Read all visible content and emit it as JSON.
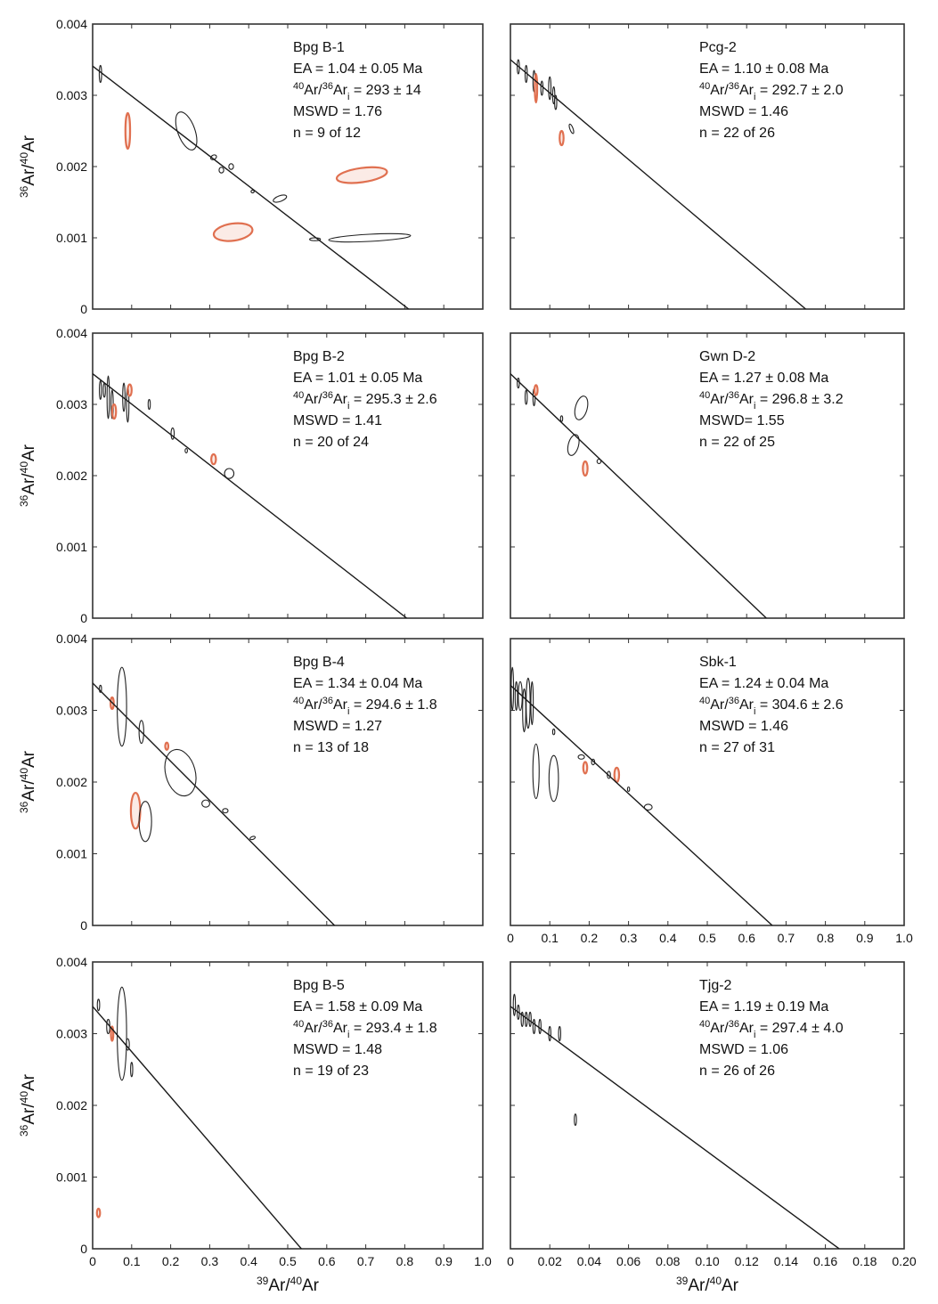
{
  "chart_data": [
    {
      "type": "scatter",
      "id": "bpg-b-1",
      "sample": "Bpg B-1",
      "ea": "EA = 1.04 ± 0.05 Ma",
      "ar_ratio": "293 ± 14",
      "mswd": "MSWD  = 1.76",
      "n": "n = 9 of 12",
      "xlim": [
        0,
        1.0
      ],
      "ylim": [
        0,
        0.004
      ],
      "yticks": [
        "0",
        "0.001",
        "0.002",
        "0.003",
        "0.004"
      ],
      "xticks": [],
      "ylabel": true,
      "xlabel": false,
      "line": [
        [
          0,
          0.00341
        ],
        [
          0.81,
          0
        ]
      ],
      "ellipses": [
        {
          "x": 0.02,
          "y": 0.0033,
          "rx": 0.003,
          "ry": 0.00012,
          "rot": 0,
          "c": "k"
        },
        {
          "x": 0.09,
          "y": 0.0025,
          "rx": 0.006,
          "ry": 0.00025,
          "rot": 0,
          "c": "r"
        },
        {
          "x": 0.24,
          "y": 0.0025,
          "rx": 0.022,
          "ry": 0.00028,
          "rot": -20,
          "c": "k"
        },
        {
          "x": 0.31,
          "y": 0.00213,
          "rx": 0.008,
          "ry": 3e-05,
          "rot": -30,
          "c": "k"
        },
        {
          "x": 0.33,
          "y": 0.00195,
          "rx": 0.006,
          "ry": 4e-05,
          "rot": 0,
          "c": "k"
        },
        {
          "x": 0.355,
          "y": 0.002,
          "rx": 0.006,
          "ry": 4e-05,
          "rot": 0,
          "c": "k"
        },
        {
          "x": 0.41,
          "y": 0.00165,
          "rx": 0.004,
          "ry": 2e-05,
          "rot": 0,
          "c": "k"
        },
        {
          "x": 0.48,
          "y": 0.00155,
          "rx": 0.018,
          "ry": 4e-05,
          "rot": -20,
          "c": "k"
        },
        {
          "x": 0.57,
          "y": 0.00098,
          "rx": 0.014,
          "ry": 2e-05,
          "rot": 0,
          "c": "k"
        },
        {
          "x": 0.36,
          "y": 0.00108,
          "rx": 0.05,
          "ry": 0.00012,
          "rot": -8,
          "c": "r"
        },
        {
          "x": 0.69,
          "y": 0.00188,
          "rx": 0.065,
          "ry": 0.0001,
          "rot": -8,
          "c": "r"
        },
        {
          "x": 0.71,
          "y": 0.001,
          "rx": 0.105,
          "ry": 5e-05,
          "rot": -3,
          "c": "k"
        }
      ]
    },
    {
      "type": "scatter",
      "id": "pcg-2",
      "sample": "Pcg-2",
      "ea": "EA = 1.10 ± 0.08 Ma",
      "ar_ratio": "292.7 ± 2.0",
      "mswd": "MSWD  = 1.46",
      "n": "n = 22 of 26",
      "xlim": [
        0,
        1.0
      ],
      "ylim": [
        0,
        0.004
      ],
      "yticks": [],
      "xticks": [],
      "ylabel": false,
      "xlabel": false,
      "line": [
        [
          0,
          0.0035
        ],
        [
          0.75,
          0
        ]
      ],
      "ellipses": [
        {
          "x": 0.02,
          "y": 0.0034,
          "rx": 0.002,
          "ry": 0.0001,
          "rot": 0,
          "c": "k"
        },
        {
          "x": 0.04,
          "y": 0.0033,
          "rx": 0.002,
          "ry": 0.00012,
          "rot": 0,
          "c": "k"
        },
        {
          "x": 0.06,
          "y": 0.0032,
          "rx": 0.002,
          "ry": 0.00015,
          "rot": 0,
          "c": "k"
        },
        {
          "x": 0.065,
          "y": 0.0031,
          "rx": 0.003,
          "ry": 0.0002,
          "rot": 0,
          "c": "r"
        },
        {
          "x": 0.08,
          "y": 0.0031,
          "rx": 0.002,
          "ry": 0.0001,
          "rot": 0,
          "c": "k"
        },
        {
          "x": 0.1,
          "y": 0.0031,
          "rx": 0.003,
          "ry": 0.00016,
          "rot": 0,
          "c": "k"
        },
        {
          "x": 0.11,
          "y": 0.003,
          "rx": 0.002,
          "ry": 0.00012,
          "rot": 0,
          "c": "k"
        },
        {
          "x": 0.115,
          "y": 0.0029,
          "rx": 0.002,
          "ry": 0.0001,
          "rot": 0,
          "c": "k"
        },
        {
          "x": 0.13,
          "y": 0.0024,
          "rx": 0.005,
          "ry": 0.0001,
          "rot": 0,
          "c": "r"
        },
        {
          "x": 0.155,
          "y": 0.00253,
          "rx": 0.004,
          "ry": 7e-05,
          "rot": -20,
          "c": "k"
        }
      ]
    },
    {
      "type": "scatter",
      "id": "bpg-b-2",
      "sample": "Bpg B-2",
      "ea": "EA = 1.01 ± 0.05 Ma",
      "ar_ratio": "295.3 ± 2.6",
      "mswd": "MSWD = 1.41",
      "n": "n = 20 of 24",
      "xlim": [
        0,
        1.0
      ],
      "ylim": [
        0,
        0.004
      ],
      "yticks": [
        "0",
        "0.001",
        "0.002",
        "0.003",
        "0.004"
      ],
      "xticks": [],
      "ylabel": true,
      "xlabel": false,
      "line": [
        [
          0,
          0.00343
        ],
        [
          0.805,
          0
        ]
      ],
      "ellipses": [
        {
          "x": 0.02,
          "y": 0.0032,
          "rx": 0.002,
          "ry": 0.00013,
          "rot": 0,
          "c": "k"
        },
        {
          "x": 0.03,
          "y": 0.0032,
          "rx": 0.002,
          "ry": 0.0001,
          "rot": 0,
          "c": "k"
        },
        {
          "x": 0.04,
          "y": 0.0031,
          "rx": 0.003,
          "ry": 0.0003,
          "rot": 0,
          "c": "k"
        },
        {
          "x": 0.05,
          "y": 0.003,
          "rx": 0.002,
          "ry": 0.0002,
          "rot": 0,
          "c": "k"
        },
        {
          "x": 0.055,
          "y": 0.0029,
          "rx": 0.005,
          "ry": 0.0001,
          "rot": 0,
          "c": "r"
        },
        {
          "x": 0.08,
          "y": 0.0031,
          "rx": 0.003,
          "ry": 0.0002,
          "rot": 0,
          "c": "k"
        },
        {
          "x": 0.09,
          "y": 0.003,
          "rx": 0.003,
          "ry": 0.00025,
          "rot": 0,
          "c": "k"
        },
        {
          "x": 0.095,
          "y": 0.0032,
          "rx": 0.005,
          "ry": 8e-05,
          "rot": 0,
          "c": "r"
        },
        {
          "x": 0.145,
          "y": 0.003,
          "rx": 0.002,
          "ry": 7e-05,
          "rot": 0,
          "c": "k"
        },
        {
          "x": 0.205,
          "y": 0.00259,
          "rx": 0.004,
          "ry": 8e-05,
          "rot": 0,
          "c": "k"
        },
        {
          "x": 0.24,
          "y": 0.00235,
          "rx": 0.003,
          "ry": 3e-05,
          "rot": 0,
          "c": "k"
        },
        {
          "x": 0.31,
          "y": 0.00223,
          "rx": 0.006,
          "ry": 7e-05,
          "rot": 0,
          "c": "r"
        },
        {
          "x": 0.35,
          "y": 0.00203,
          "rx": 0.012,
          "ry": 7e-05,
          "rot": 0,
          "c": "k"
        }
      ]
    },
    {
      "type": "scatter",
      "id": "gwn-d-2",
      "sample": "Gwn D-2",
      "ea": "EA = 1.27 ± 0.08 Ma",
      "ar_ratio": "296.8 ± 3.2",
      "mswd": "MSWD= 1.55",
      "n": "n = 22 of 25",
      "xlim": [
        0,
        1.0
      ],
      "ylim": [
        0,
        0.004
      ],
      "yticks": [],
      "xticks": [],
      "ylabel": false,
      "xlabel": false,
      "line": [
        [
          0,
          0.00343
        ],
        [
          0.65,
          0
        ]
      ],
      "ellipses": [
        {
          "x": 0.02,
          "y": 0.0033,
          "rx": 0.002,
          "ry": 7e-05,
          "rot": 0,
          "c": "k"
        },
        {
          "x": 0.04,
          "y": 0.0031,
          "rx": 0.002,
          "ry": 0.0001,
          "rot": 0,
          "c": "k"
        },
        {
          "x": 0.06,
          "y": 0.0031,
          "rx": 0.002,
          "ry": 0.00012,
          "rot": 0,
          "c": "k"
        },
        {
          "x": 0.065,
          "y": 0.0032,
          "rx": 0.004,
          "ry": 7e-05,
          "rot": 0,
          "c": "r"
        },
        {
          "x": 0.13,
          "y": 0.0028,
          "rx": 0.002,
          "ry": 4e-05,
          "rot": 0,
          "c": "k"
        },
        {
          "x": 0.18,
          "y": 0.00295,
          "rx": 0.015,
          "ry": 0.00017,
          "rot": 15,
          "c": "k"
        },
        {
          "x": 0.16,
          "y": 0.00243,
          "rx": 0.013,
          "ry": 0.00015,
          "rot": 15,
          "c": "k"
        },
        {
          "x": 0.19,
          "y": 0.0021,
          "rx": 0.006,
          "ry": 0.0001,
          "rot": 0,
          "c": "r"
        },
        {
          "x": 0.225,
          "y": 0.0022,
          "rx": 0.005,
          "ry": 3e-05,
          "rot": 0,
          "c": "k"
        }
      ]
    },
    {
      "type": "scatter",
      "id": "bpg-b-4",
      "sample": "Bpg B-4",
      "ea": "EA = 1.34 ± 0.04 Ma",
      "ar_ratio": "294.6 ± 1.8",
      "mswd": "MSWD = 1.27",
      "n": "n = 13 of 18",
      "xlim": [
        0,
        1.0
      ],
      "ylim": [
        0,
        0.004
      ],
      "yticks": [
        "0",
        "0.001",
        "0.002",
        "0.003",
        "0.004"
      ],
      "xticks": [],
      "ylabel": true,
      "xlabel": false,
      "line": [
        [
          0,
          0.00338
        ],
        [
          0.62,
          0
        ]
      ],
      "ellipses": [
        {
          "x": 0.02,
          "y": 0.0033,
          "rx": 0.002,
          "ry": 5e-05,
          "rot": 0,
          "c": "k"
        },
        {
          "x": 0.05,
          "y": 0.0031,
          "rx": 0.004,
          "ry": 8e-05,
          "rot": 0,
          "c": "r"
        },
        {
          "x": 0.075,
          "y": 0.00305,
          "rx": 0.012,
          "ry": 0.00055,
          "rot": 0,
          "c": "k"
        },
        {
          "x": 0.125,
          "y": 0.0027,
          "rx": 0.006,
          "ry": 0.00016,
          "rot": 0,
          "c": "k"
        },
        {
          "x": 0.19,
          "y": 0.0025,
          "rx": 0.004,
          "ry": 5e-05,
          "rot": 0,
          "c": "r"
        },
        {
          "x": 0.11,
          "y": 0.0016,
          "rx": 0.012,
          "ry": 0.00025,
          "rot": 0,
          "c": "r"
        },
        {
          "x": 0.135,
          "y": 0.00145,
          "rx": 0.016,
          "ry": 0.00028,
          "rot": 0,
          "c": "k"
        },
        {
          "x": 0.225,
          "y": 0.00213,
          "rx": 0.038,
          "ry": 0.00033,
          "rot": -15,
          "c": "k"
        },
        {
          "x": 0.29,
          "y": 0.0017,
          "rx": 0.01,
          "ry": 5e-05,
          "rot": 0,
          "c": "k"
        },
        {
          "x": 0.34,
          "y": 0.0016,
          "rx": 0.007,
          "ry": 3e-05,
          "rot": 0,
          "c": "k"
        },
        {
          "x": 0.41,
          "y": 0.00122,
          "rx": 0.007,
          "ry": 2e-05,
          "rot": -20,
          "c": "k"
        }
      ]
    },
    {
      "type": "scatter",
      "id": "sbk-1",
      "sample": "Sbk-1",
      "ea": "EA = 1.24 ± 0.04 Ma",
      "ar_ratio": "304.6 ± 2.6",
      "mswd": "MSWD  = 1.46",
      "n": "n = 27 of 31",
      "xlim": [
        0,
        1.0
      ],
      "ylim": [
        0,
        0.004
      ],
      "yticks": [],
      "xticks": [
        "0",
        "0.1",
        "0.2",
        "0.3",
        "0.4",
        "0.5",
        "0.6",
        "0.7",
        "0.8",
        "0.9",
        "1.0"
      ],
      "ylabel": false,
      "xlabel": false,
      "line": [
        [
          0,
          0.00335
        ],
        [
          0.665,
          0
        ]
      ],
      "ellipses": [
        {
          "x": 0.005,
          "y": 0.0033,
          "rx": 0.003,
          "ry": 0.0003,
          "rot": 0,
          "c": "k"
        },
        {
          "x": 0.015,
          "y": 0.0032,
          "rx": 0.003,
          "ry": 0.0002,
          "rot": 0,
          "c": "k"
        },
        {
          "x": 0.025,
          "y": 0.0032,
          "rx": 0.005,
          "ry": 0.0002,
          "rot": 0,
          "c": "k"
        },
        {
          "x": 0.035,
          "y": 0.003,
          "rx": 0.004,
          "ry": 0.0003,
          "rot": 0,
          "c": "k"
        },
        {
          "x": 0.045,
          "y": 0.0031,
          "rx": 0.005,
          "ry": 0.00035,
          "rot": 0,
          "c": "k"
        },
        {
          "x": 0.055,
          "y": 0.0031,
          "rx": 0.003,
          "ry": 0.0003,
          "rot": 0,
          "c": "k"
        },
        {
          "x": 0.065,
          "y": 0.00215,
          "rx": 0.008,
          "ry": 0.00038,
          "rot": 0,
          "c": "k"
        },
        {
          "x": 0.11,
          "y": 0.00205,
          "rx": 0.012,
          "ry": 0.00032,
          "rot": 0,
          "c": "k"
        },
        {
          "x": 0.11,
          "y": 0.0027,
          "rx": 0.002,
          "ry": 4e-05,
          "rot": 0,
          "c": "k"
        },
        {
          "x": 0.18,
          "y": 0.00235,
          "rx": 0.008,
          "ry": 3e-05,
          "rot": 0,
          "c": "k"
        },
        {
          "x": 0.19,
          "y": 0.0022,
          "rx": 0.005,
          "ry": 8e-05,
          "rot": 0,
          "c": "r"
        },
        {
          "x": 0.21,
          "y": 0.00228,
          "rx": 0.004,
          "ry": 4e-05,
          "rot": 0,
          "c": "k"
        },
        {
          "x": 0.25,
          "y": 0.0021,
          "rx": 0.004,
          "ry": 5e-05,
          "rot": 0,
          "c": "k"
        },
        {
          "x": 0.27,
          "y": 0.0021,
          "rx": 0.006,
          "ry": 0.0001,
          "rot": 0,
          "c": "r"
        },
        {
          "x": 0.3,
          "y": 0.0019,
          "rx": 0.002,
          "ry": 3e-05,
          "rot": 0,
          "c": "k"
        },
        {
          "x": 0.35,
          "y": 0.00165,
          "rx": 0.01,
          "ry": 4e-05,
          "rot": 0,
          "c": "k"
        }
      ]
    },
    {
      "type": "scatter",
      "id": "bpg-b-5",
      "sample": "Bpg B-5",
      "ea": "EA = 1.58 ± 0.09 Ma",
      "ar_ratio": "293.4 ± 1.8",
      "mswd": "MSWD = 1.48",
      "n": "n = 19 of 23",
      "xlim": [
        0,
        1.0
      ],
      "ylim": [
        0,
        0.004
      ],
      "yticks": [
        "0",
        "0.001",
        "0.002",
        "0.003",
        "0.004"
      ],
      "xticks": [
        "0",
        "0.1",
        "0.2",
        "0.3",
        "0.4",
        "0.5",
        "0.6",
        "0.7",
        "0.8",
        "0.9",
        "1.0"
      ],
      "ylabel": true,
      "xlabel": true,
      "line": [
        [
          0,
          0.00338
        ],
        [
          0.535,
          0
        ]
      ],
      "ellipses": [
        {
          "x": 0.015,
          "y": 0.0034,
          "rx": 0.003,
          "ry": 8e-05,
          "rot": 0,
          "c": "k"
        },
        {
          "x": 0.04,
          "y": 0.0031,
          "rx": 0.004,
          "ry": 0.0001,
          "rot": 0,
          "c": "k"
        },
        {
          "x": 0.05,
          "y": 0.003,
          "rx": 0.003,
          "ry": 0.0001,
          "rot": 0,
          "c": "r"
        },
        {
          "x": 0.075,
          "y": 0.003,
          "rx": 0.012,
          "ry": 0.00065,
          "rot": 0,
          "c": "k"
        },
        {
          "x": 0.09,
          "y": 0.00285,
          "rx": 0.004,
          "ry": 8e-05,
          "rot": 0,
          "c": "k"
        },
        {
          "x": 0.1,
          "y": 0.0025,
          "rx": 0.002,
          "ry": 0.0001,
          "rot": 0,
          "c": "k"
        },
        {
          "x": 0.015,
          "y": 0.0005,
          "rx": 0.004,
          "ry": 6e-05,
          "rot": 0,
          "c": "r"
        }
      ]
    },
    {
      "type": "scatter",
      "id": "tjg-2",
      "sample": "Tjg-2",
      "ea": "EA = 1.19 ± 0.19 Ma",
      "ar_ratio": "297.4 ± 4.0",
      "mswd": "MSWD = 1.06",
      "n": "n = 26 of 26",
      "xlim": [
        0,
        0.2
      ],
      "ylim": [
        0,
        0.004
      ],
      "yticks": [],
      "xticks": [
        "0",
        "0.02",
        "0.04",
        "0.06",
        "0.08",
        "0.10",
        "0.12",
        "0.14",
        "0.16",
        "0.18",
        "0.20"
      ],
      "ylabel": false,
      "xlabel": true,
      "line": [
        [
          0,
          0.00338
        ],
        [
          0.167,
          0
        ]
      ],
      "ellipses": [
        {
          "x": 0.002,
          "y": 0.0034,
          "rx": 0.0003,
          "ry": 0.00015,
          "rot": 0,
          "c": "k"
        },
        {
          "x": 0.004,
          "y": 0.0033,
          "rx": 0.0003,
          "ry": 0.0001,
          "rot": 0,
          "c": "k"
        },
        {
          "x": 0.006,
          "y": 0.0032,
          "rx": 0.0003,
          "ry": 0.0001,
          "rot": 0,
          "c": "k"
        },
        {
          "x": 0.008,
          "y": 0.0032,
          "rx": 0.0003,
          "ry": 0.0001,
          "rot": 0,
          "c": "k"
        },
        {
          "x": 0.01,
          "y": 0.0032,
          "rx": 0.0003,
          "ry": 0.0001,
          "rot": 0,
          "c": "k"
        },
        {
          "x": 0.012,
          "y": 0.0031,
          "rx": 0.0003,
          "ry": 0.0001,
          "rot": 0,
          "c": "k"
        },
        {
          "x": 0.015,
          "y": 0.0031,
          "rx": 0.0003,
          "ry": 0.0001,
          "rot": 0,
          "c": "k"
        },
        {
          "x": 0.02,
          "y": 0.003,
          "rx": 0.0003,
          "ry": 0.0001,
          "rot": 0,
          "c": "k"
        },
        {
          "x": 0.025,
          "y": 0.003,
          "rx": 0.0003,
          "ry": 0.0001,
          "rot": 0,
          "c": "k"
        },
        {
          "x": 0.033,
          "y": 0.0018,
          "rx": 0.0003,
          "ry": 8e-05,
          "rot": 0,
          "c": "k"
        }
      ]
    }
  ],
  "axis_labels": {
    "y_sup": "36",
    "y_mid": "Ar/",
    "y_sup2": "40",
    "y_end": "Ar",
    "x_sup": "39",
    "x_mid": "Ar/",
    "x_sup2": "40",
    "x_end": "Ar"
  },
  "ratio_label": {
    "sup1": "40",
    "mid": "Ar/",
    "sup2": "36",
    "end": "Ar",
    "sub": "i",
    "eq": " =  "
  },
  "colors": {
    "black_ellipse": "#222222",
    "red_ellipse": "#e07050",
    "line": "#1a1a1a",
    "axis": "#333333"
  }
}
